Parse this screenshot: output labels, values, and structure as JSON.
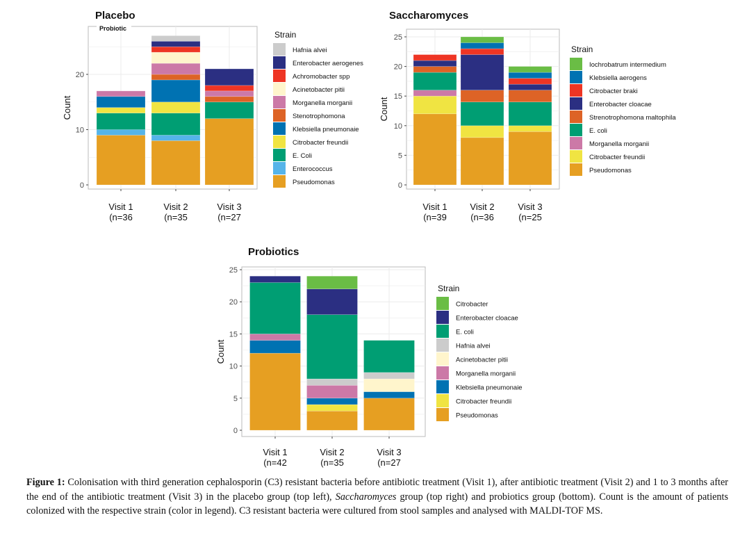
{
  "colors": {
    "Pseudomonas": "#E69F22",
    "Enterococcus": "#56B4E9",
    "E. Coli": "#009E73",
    "E. coli": "#009E73",
    "Citrobacter freundii": "#F0E442",
    "Klebsiella pneumonaie": "#0072B2",
    "Klebsiella aerogens": "#0072B2",
    "Stenotrophomona": "#DD6326",
    "Strenotrophomona maltophila": "#DD6326",
    "Morganella morganii": "#CC79A7",
    "Acinetobacter pitii": "#FFF5CC",
    "Achromobacter spp": "#EE3524",
    "Citrobacter braki": "#EE3524",
    "Enterobacter aerogenes": "#2B2F82",
    "Enterobacter cloacae": "#2B2F82",
    "Hafnia alvei": "#CCCCCC",
    "Iochrobatrum intermedium": "#6ABD45",
    "Citrobacter": "#6ABD45"
  },
  "chart_data": [
    {
      "type": "bar",
      "stacked": true,
      "title": "Placebo",
      "annotation": "Probiotic",
      "ylabel": "Count",
      "ylim": [
        0,
        28
      ],
      "yticks": [
        "0",
        "10",
        "20"
      ],
      "categories": [
        [
          "Visit 1",
          "(n=36"
        ],
        [
          "Visit 2",
          "(n=35"
        ],
        [
          "Visit 3",
          "(n=27"
        ]
      ],
      "legend_title": "Strain",
      "series": [
        {
          "name": "Pseudomonas",
          "values": [
            9,
            8,
            12
          ]
        },
        {
          "name": "Enterococcus",
          "values": [
            1,
            1,
            0
          ]
        },
        {
          "name": "E. Coli",
          "values": [
            3,
            4,
            3
          ]
        },
        {
          "name": "Citrobacter freundii",
          "values": [
            1,
            2,
            0
          ]
        },
        {
          "name": "Klebsiella pneumonaie",
          "values": [
            2,
            4,
            0
          ]
        },
        {
          "name": "Stenotrophomona",
          "values": [
            0,
            1,
            1
          ]
        },
        {
          "name": "Morganella morganii",
          "values": [
            1,
            2,
            1
          ]
        },
        {
          "name": "Acinetobacter pitii",
          "values": [
            0,
            2,
            0
          ]
        },
        {
          "name": "Achromobacter spp",
          "values": [
            0,
            1,
            1
          ]
        },
        {
          "name": "Enterobacter aerogenes",
          "values": [
            0,
            1,
            3
          ]
        },
        {
          "name": "Hafnia alvei",
          "values": [
            0,
            1,
            0
          ]
        }
      ]
    },
    {
      "type": "bar",
      "stacked": true,
      "title": "Saccharomyces",
      "ylabel": "Count",
      "ylim": [
        0,
        25.8
      ],
      "yticks": [
        "0",
        "5",
        "10",
        "15",
        "20",
        "25"
      ],
      "categories": [
        [
          "Visit 1",
          "(n=39"
        ],
        [
          "Visit 2",
          "(n=36"
        ],
        [
          "Visit 3",
          "(n=25"
        ]
      ],
      "legend_title": "Strain",
      "series": [
        {
          "name": "Pseudomonas",
          "values": [
            12,
            8,
            9
          ]
        },
        {
          "name": "Citrobacter freundii",
          "values": [
            3,
            2,
            1
          ]
        },
        {
          "name": "Morganella morganii",
          "values": [
            1,
            0,
            0
          ]
        },
        {
          "name": "E. coli",
          "values": [
            3,
            4,
            4
          ]
        },
        {
          "name": "Strenotrophomona maltophila",
          "values": [
            1,
            2,
            2
          ]
        },
        {
          "name": "Enterobacter cloacae",
          "values": [
            1,
            6,
            1
          ]
        },
        {
          "name": "Citrobacter braki",
          "values": [
            1,
            1,
            1
          ]
        },
        {
          "name": "Klebsiella aerogens",
          "values": [
            0,
            1,
            1
          ]
        },
        {
          "name": "Iochrobatrum intermedium",
          "values": [
            0,
            1,
            1
          ]
        }
      ]
    },
    {
      "type": "bar",
      "stacked": true,
      "title": "Probiotics",
      "ylabel": "Count",
      "ylim": [
        0,
        25.3
      ],
      "yticks": [
        "0",
        "5",
        "10",
        "15",
        "20",
        "25"
      ],
      "categories": [
        [
          "Visit 1",
          "(n=42"
        ],
        [
          "Visit 2",
          "(n=35"
        ],
        [
          "Visit 3",
          "(n=27"
        ]
      ],
      "legend_title": "Strain",
      "series": [
        {
          "name": "Pseudomonas",
          "values": [
            12,
            3,
            5
          ]
        },
        {
          "name": "Citrobacter freundii",
          "values": [
            0,
            1,
            0
          ]
        },
        {
          "name": "Klebsiella pneumonaie",
          "values": [
            2,
            1,
            1
          ]
        },
        {
          "name": "Morganella morganii",
          "values": [
            1,
            2,
            0
          ]
        },
        {
          "name": "Acinetobacter pitii",
          "values": [
            0,
            0,
            2
          ]
        },
        {
          "name": "Hafnia alvei",
          "values": [
            0,
            1,
            1
          ]
        },
        {
          "name": "E. coli",
          "values": [
            8,
            10,
            5
          ]
        },
        {
          "name": "Enterobacter cloacae",
          "values": [
            1,
            4,
            0
          ]
        },
        {
          "name": "Citrobacter",
          "values": [
            0,
            2,
            0
          ]
        }
      ]
    }
  ],
  "caption": {
    "label": "Figure 1:",
    "text": " Colonisation with third generation cephalosporin (C3) resistant bacteria before antibiotic treatment (Visit 1), after antibiotic treatment (Visit 2) and 1 to 3 months after the end of the antibiotic treatment (Visit 3) in the placebo group (top left), ",
    "italic": "Saccharomyces",
    "text2": " group (top right) and probiotics group (bottom). Count is the amount of patients colonized with the respective strain (color in legend). C3 resistant bacteria were cultured from stool samples and analysed with MALDI-TOF MS."
  }
}
